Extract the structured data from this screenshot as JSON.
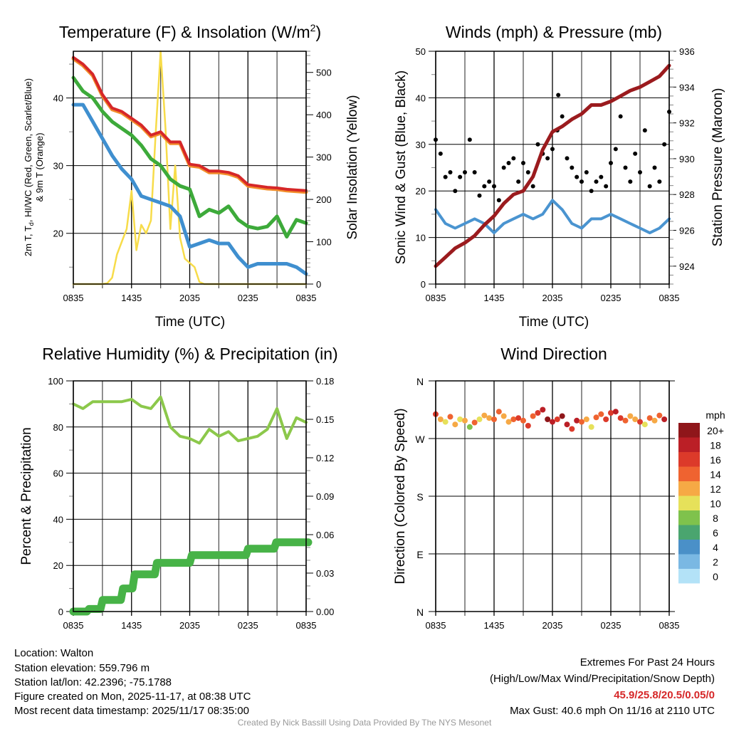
{
  "chart_data": [
    {
      "type": "line",
      "title_main": "Temperature (F) & Insolation (W/m",
      "title_sup": "2",
      "title_end": ")",
      "ylabel_line1_a": "2m T, T",
      "ylabel_line1_sub": "d",
      "ylabel_line1_b": ", HI/WC (Red, Green, Scarlet/Blue)",
      "ylabel_line2": "& 9m T (Orange)",
      "ylabel_right": "Solar Insolation (Yellow)",
      "xlabel": "Time (UTC)",
      "x_tick_labels": [
        "0835",
        "1435",
        "2035",
        "0235",
        "0835"
      ],
      "x_hours_range": [
        0,
        24
      ],
      "ylim": [
        12.5,
        46.9
      ],
      "ylim_right": [
        0,
        550
      ],
      "y_ticks": [
        20,
        30,
        40
      ],
      "y_ticks_right": [
        0,
        100,
        200,
        300,
        400,
        500
      ],
      "series": [
        {
          "name": "2m T",
          "color": "#d62728",
          "hours_step": 1,
          "values": [
            46,
            45,
            43.5,
            40.5,
            38.5,
            38,
            37,
            36,
            34.5,
            35,
            33.5,
            33.5,
            30.2,
            30,
            29.2,
            29.2,
            29,
            28.5,
            27.2,
            27,
            26.8,
            26.7,
            26.5,
            26.4,
            26.3
          ]
        },
        {
          "name": "9m T",
          "color": "#f28e2b",
          "hours_step": 1,
          "values": [
            45.8,
            44.8,
            43.3,
            40.3,
            38.3,
            37.8,
            36.8,
            35.8,
            34.3,
            34.8,
            33.3,
            33.3,
            30,
            29.8,
            29,
            29,
            28.8,
            28.3,
            27,
            26.8,
            26.6,
            26.5,
            26.3,
            26.2,
            26.1
          ]
        },
        {
          "name": "Td",
          "color": "#3daa3a",
          "hours_step": 1,
          "values": [
            43,
            41,
            40,
            38,
            36.5,
            35.5,
            34.5,
            33,
            31,
            30,
            28,
            27,
            26.5,
            22.5,
            23.5,
            23,
            24,
            22,
            21,
            20.7,
            21,
            22.5,
            19.5,
            22,
            21.5
          ]
        },
        {
          "name": "HI/WC",
          "color": "#3f8fcf",
          "hours_step": 1,
          "values": [
            39,
            39,
            36.5,
            34,
            31.5,
            29.5,
            28,
            25.5,
            25,
            24.5,
            24,
            22.5,
            18,
            18.5,
            19,
            18.5,
            18.5,
            16.5,
            15,
            15.5,
            15.5,
            15.5,
            15.5,
            15,
            14
          ]
        },
        {
          "name": "Solar Insolation",
          "color": "#f7dc4a",
          "axis": "right",
          "hours_step": 0.5,
          "values": [
            0,
            0,
            0,
            0,
            0,
            0,
            0,
            2,
            15,
            70,
            100,
            130,
            220,
            80,
            140,
            120,
            150,
            360,
            550,
            370,
            130,
            280,
            110,
            60,
            50,
            40,
            5,
            0,
            0,
            0,
            0,
            0,
            0,
            0,
            0,
            0,
            0,
            0,
            0,
            0,
            0,
            0,
            0,
            0,
            0,
            0,
            0,
            0,
            0
          ]
        }
      ]
    },
    {
      "type": "line+scatter",
      "title": "Winds (mph) & Pressure (mb)",
      "ylabel": "Sonic Wind & Gust (Blue, Black)",
      "ylabel_right": "Station Pressure (Maroon)",
      "xlabel": "Time (UTC)",
      "x_tick_labels": [
        "0835",
        "1435",
        "2035",
        "0235",
        "0835"
      ],
      "x_hours_range": [
        0,
        24
      ],
      "ylim": [
        0,
        50
      ],
      "ylim_right": [
        923,
        936
      ],
      "y_ticks": [
        0,
        10,
        20,
        30,
        40,
        50
      ],
      "y_ticks_right": [
        924,
        926,
        928,
        930,
        932,
        934,
        936
      ],
      "series": [
        {
          "name": "Sonic Wind",
          "color": "#4a94d0",
          "hours_step": 1,
          "values": [
            16,
            13,
            12,
            13,
            14,
            13,
            11,
            13,
            14,
            15,
            14,
            15,
            18,
            16,
            13,
            12,
            14,
            14,
            15,
            14,
            13,
            12,
            11,
            12,
            14
          ]
        },
        {
          "name": "Gust",
          "color": "#000000",
          "kind": "scatter",
          "hours_step": 0.5,
          "values": [
            31,
            28,
            23,
            24,
            20,
            23,
            24,
            31,
            24,
            19,
            21,
            22,
            21,
            18,
            25,
            26,
            27,
            22,
            26,
            24,
            21,
            30,
            28,
            27,
            29,
            33,
            36,
            27,
            25,
            23,
            22,
            24,
            20,
            22,
            23,
            21,
            26,
            29,
            36,
            25,
            22,
            28,
            24,
            33,
            21,
            25,
            22,
            30,
            37
          ]
        },
        {
          "name": "Max Gust",
          "color": "#000000",
          "kind": "scatter",
          "points": [
            [
              12.6,
              40.6
            ]
          ]
        },
        {
          "name": "Station Pressure",
          "color": "#9b1b1e",
          "axis": "right",
          "hours_step": 1,
          "values": [
            924,
            924.5,
            925,
            925.3,
            925.7,
            926.3,
            926.8,
            927.5,
            928,
            928.2,
            929,
            930.5,
            931.5,
            931.8,
            932.2,
            932.5,
            933,
            933,
            933.2,
            933.5,
            933.8,
            934,
            934.3,
            934.6,
            935.2
          ]
        }
      ]
    },
    {
      "type": "line",
      "title": "Relative Humidity (%) & Precipitation (in)",
      "ylabel": "Percent & Precipitation",
      "x_tick_labels": [
        "0835",
        "1435",
        "2035",
        "0235",
        "0835"
      ],
      "x_hours_range": [
        0,
        24
      ],
      "ylim": [
        0,
        100
      ],
      "ylim_right": [
        0,
        0.18
      ],
      "y_ticks": [
        0,
        20,
        40,
        60,
        80,
        100
      ],
      "y_ticks_right": [
        "0.00",
        "0.03",
        "0.06",
        "0.09",
        "0.12",
        "0.15",
        "0.18"
      ],
      "series": [
        {
          "name": "Relative Humidity",
          "color": "#8cc84b",
          "hours_step": 1,
          "values": [
            90,
            88,
            91,
            91,
            91,
            91,
            92,
            89,
            88,
            93,
            80,
            76,
            75,
            73,
            79,
            76,
            78,
            74,
            75,
            76,
            79,
            88,
            75,
            84,
            82
          ]
        },
        {
          "name": "Precipitation",
          "color": "#47b347",
          "axis": "right",
          "steps": [
            [
              0,
              0
            ],
            [
              1.4,
              0.002
            ],
            [
              2.8,
              0.009
            ],
            [
              4.9,
              0.018
            ],
            [
              6.1,
              0.029
            ],
            [
              8.4,
              0.038
            ],
            [
              12,
              0.044
            ],
            [
              17.8,
              0.049
            ],
            [
              20.7,
              0.054
            ],
            [
              24,
              0.054
            ]
          ]
        }
      ]
    },
    {
      "type": "scatter",
      "title": "Wind Direction",
      "ylabel": "Direction (Colored By Speed)",
      "x_tick_labels": [
        "0835",
        "1435",
        "2035",
        "0235",
        "0835"
      ],
      "x_hours_range": [
        0,
        24
      ],
      "ylim": [
        0,
        360
      ],
      "y_tick_labels": [
        "N",
        "E",
        "S",
        "W",
        "N"
      ],
      "hours_step": 0.5,
      "direction_deg": [
        308,
        300,
        296,
        304,
        292,
        300,
        298,
        288,
        295,
        300,
        306,
        302,
        300,
        312,
        305,
        296,
        300,
        302,
        298,
        290,
        305,
        310,
        315,
        300,
        296,
        300,
        305,
        292,
        285,
        298,
        296,
        300,
        288,
        303,
        308,
        300,
        310,
        312,
        302,
        298,
        305,
        300,
        296,
        292,
        302,
        298,
        306,
        300
      ],
      "speed_mph": [
        16,
        12,
        10,
        14,
        12,
        10,
        12,
        8,
        14,
        10,
        12,
        12,
        14,
        15,
        12,
        12,
        14,
        16,
        15,
        17,
        14,
        16,
        18,
        20,
        18,
        17,
        20,
        19,
        17,
        18,
        14,
        12,
        11,
        15,
        14,
        16,
        17,
        18,
        16,
        14,
        12,
        13,
        16,
        10,
        14,
        12,
        15,
        18
      ],
      "legend": {
        "title": "mph",
        "labels": [
          "20+",
          "18",
          "16",
          "14",
          "12",
          "10",
          "8",
          "6",
          "4",
          "2",
          "0"
        ],
        "colors": [
          "#8f161a",
          "#bb1f26",
          "#dc3a2a",
          "#ef6330",
          "#f6a945",
          "#e6e15a",
          "#7fc24c",
          "#4aa56f",
          "#4a90c8",
          "#7ab8e3",
          "#b3e2f7"
        ]
      }
    }
  ],
  "info": {
    "location": "Location: Walton",
    "elevation": "Station elevation: 559.796 m",
    "latlon": "Station lat/lon: 42.2396; -75.1788",
    "created": "Figure created on Mon, 2025-11-17, at 08:38 UTC",
    "recent": "Most recent data timestamp: 2025/11/17 08:35:00"
  },
  "extremes": {
    "heading": "Extremes For Past 24 Hours",
    "subheading": "(High/Low/Max Wind/Precipitation/Snow Depth)",
    "values": "45.9/25.8/20.5/0.05/0",
    "values_color": "#d62728",
    "max_gust": "Max Gust: 40.6 mph On 11/16 at 2110 UTC"
  },
  "credit": "Created By Nick Bassill Using Data Provided By The NYS Mesonet"
}
